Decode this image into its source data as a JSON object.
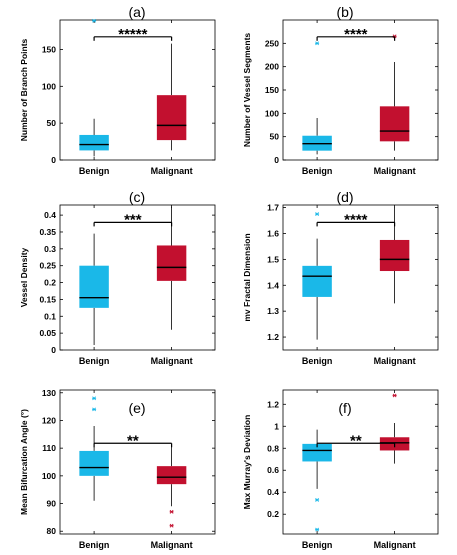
{
  "colors": {
    "benign": "#1ab8e8",
    "malignant": "#c2102f"
  },
  "chart_data": [
    {
      "type": "box",
      "panel_label": "(a)",
      "ylabel": "Number of Branch Points",
      "categories": [
        "Benign",
        "Malignant"
      ],
      "ylim": [
        0,
        190
      ],
      "yticks": [
        0,
        50,
        100,
        150
      ],
      "significance": "*****",
      "boxes": [
        {
          "name": "Benign",
          "whisker_low": 5,
          "q1": 13,
          "median": 21,
          "q3": 34,
          "whisker_high": 56,
          "outliers": [
            189
          ]
        },
        {
          "name": "Malignant",
          "whisker_low": 13,
          "q1": 27,
          "median": 47,
          "q3": 88,
          "whisker_high": 158,
          "outliers": []
        }
      ]
    },
    {
      "type": "box",
      "panel_label": "(b)",
      "ylabel": "Number of Vessel Segments",
      "categories": [
        "Benign",
        "Malignant"
      ],
      "ylim": [
        0,
        300
      ],
      "yticks": [
        0,
        50,
        100,
        150,
        200,
        250
      ],
      "significance": "****",
      "boxes": [
        {
          "name": "Benign",
          "whisker_low": 12,
          "q1": 20,
          "median": 35,
          "q3": 52,
          "whisker_high": 90,
          "outliers": [
            250
          ]
        },
        {
          "name": "Malignant",
          "whisker_low": 20,
          "q1": 40,
          "median": 62,
          "q3": 115,
          "whisker_high": 210,
          "outliers": [
            265
          ]
        }
      ]
    },
    {
      "type": "box",
      "panel_label": "(c)",
      "ylabel": "Vessel Density",
      "categories": [
        "Benign",
        "Malignant"
      ],
      "ylim": [
        0,
        0.43
      ],
      "yticks": [
        0,
        0.05,
        0.1,
        0.15,
        0.2,
        0.25,
        0.3,
        0.35,
        0.4
      ],
      "ytick_labels": [
        "0",
        "0.05",
        "0.1",
        "0.15",
        "0.2",
        "0.25",
        "0.3",
        "0.35",
        "0.4"
      ],
      "significance": "***",
      "boxes": [
        {
          "name": "Benign",
          "whisker_low": 0.015,
          "q1": 0.125,
          "median": 0.155,
          "q3": 0.25,
          "whisker_high": 0.345,
          "outliers": []
        },
        {
          "name": "Malignant",
          "whisker_low": 0.06,
          "q1": 0.205,
          "median": 0.245,
          "q3": 0.31,
          "whisker_high": 0.425,
          "outliers": []
        }
      ]
    },
    {
      "type": "box",
      "panel_label": "(d)",
      "ylabel": "mv Fractal Dimension",
      "categories": [
        "Benign",
        "Malignant"
      ],
      "ylim": [
        1.15,
        1.71
      ],
      "yticks": [
        1.2,
        1.3,
        1.4,
        1.5,
        1.6,
        1.7
      ],
      "ytick_labels": [
        "1.2",
        "1.3",
        "1.4",
        "1.5",
        "1.6",
        "1.7"
      ],
      "significance": "****",
      "boxes": [
        {
          "name": "Benign",
          "whisker_low": 1.19,
          "q1": 1.355,
          "median": 1.435,
          "q3": 1.475,
          "whisker_high": 1.58,
          "outliers": [
            1.675
          ]
        },
        {
          "name": "Malignant",
          "whisker_low": 1.33,
          "q1": 1.455,
          "median": 1.5,
          "q3": 1.575,
          "whisker_high": 1.7,
          "outliers": []
        }
      ]
    },
    {
      "type": "box",
      "panel_label": "(e)",
      "ylabel": "Mean Bifurcation Angle (°)",
      "categories": [
        "Benign",
        "Malignant"
      ],
      "ylim": [
        79,
        131
      ],
      "yticks": [
        80,
        90,
        100,
        110,
        120,
        130
      ],
      "significance": "**",
      "boxes": [
        {
          "name": "Benign",
          "whisker_low": 91,
          "q1": 100,
          "median": 103,
          "q3": 109,
          "whisker_high": 118,
          "outliers": [
            124,
            128
          ]
        },
        {
          "name": "Malignant",
          "whisker_low": 89,
          "q1": 97,
          "median": 99.5,
          "q3": 103.5,
          "whisker_high": 111,
          "outliers": [
            82,
            87
          ]
        }
      ]
    },
    {
      "type": "box",
      "panel_label": "(f)",
      "ylabel": "Max Murray's Deviation",
      "categories": [
        "Benign",
        "Malignant"
      ],
      "ylim": [
        0.02,
        1.33
      ],
      "yticks": [
        0.2,
        0.4,
        0.6,
        0.8,
        1,
        1.2
      ],
      "ytick_labels": [
        "0.2",
        "0.4",
        "0.6",
        "0.8",
        "1",
        "1.2"
      ],
      "significance": "**",
      "boxes": [
        {
          "name": "Benign",
          "whisker_low": 0.43,
          "q1": 0.68,
          "median": 0.78,
          "q3": 0.84,
          "whisker_high": 0.97,
          "outliers": [
            0.06,
            0.33
          ]
        },
        {
          "name": "Malignant",
          "whisker_low": 0.66,
          "q1": 0.78,
          "median": 0.85,
          "q3": 0.9,
          "whisker_high": 1.03,
          "outliers": [
            1.28
          ]
        }
      ]
    }
  ]
}
